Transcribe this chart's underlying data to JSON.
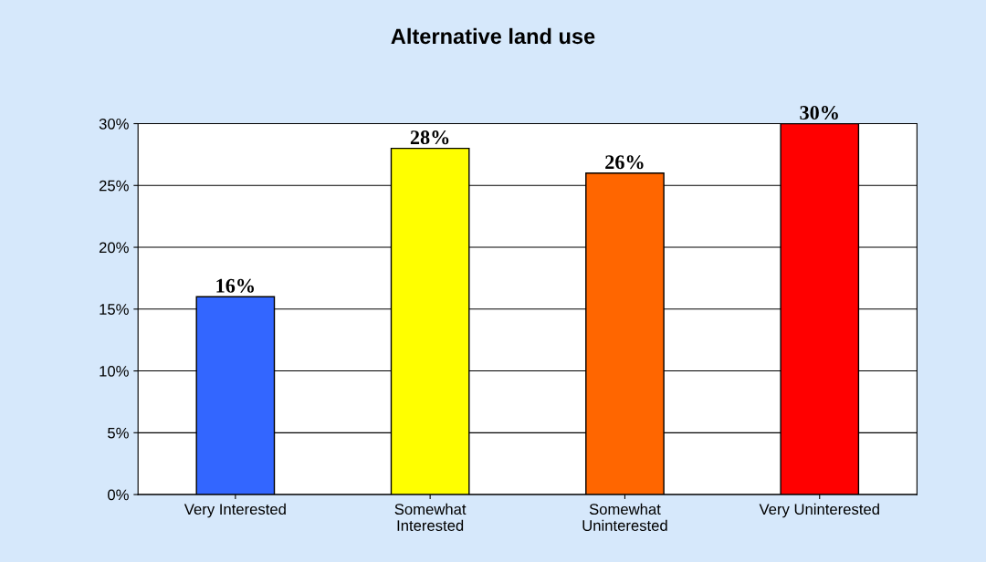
{
  "chart_data": {
    "type": "bar",
    "title": "Alternative land use",
    "categories": [
      "Very Interested",
      "Somewhat\nInterested",
      "Somewhat\nUninterested",
      "Very Uninterested"
    ],
    "values": [
      16,
      28,
      26,
      30
    ],
    "colors": [
      "#3366ff",
      "#ffff00",
      "#ff6600",
      "#ff0000"
    ],
    "value_labels": [
      "16%",
      "28%",
      "26%",
      "30%"
    ],
    "ylim": [
      0,
      30
    ],
    "yticks": [
      {
        "value": 0,
        "label": "0%"
      },
      {
        "value": 5,
        "label": "5%"
      },
      {
        "value": 10,
        "label": "10%"
      },
      {
        "value": 15,
        "label": "15%"
      },
      {
        "value": 20,
        "label": "20%"
      },
      {
        "value": 25,
        "label": "25%"
      },
      {
        "value": 30,
        "label": "30%"
      }
    ],
    "grid": "y",
    "legend": false
  }
}
